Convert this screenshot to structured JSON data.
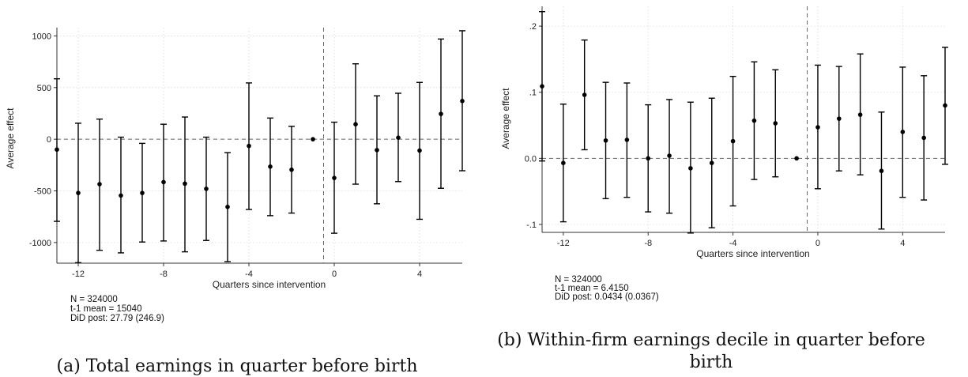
{
  "chart_data": [
    {
      "type": "scatter",
      "subtype": "event-study point estimates with 95% confidence intervals",
      "caption": "(a) Total earnings in quarter before birth",
      "xlabel": "Quarters since intervention",
      "ylabel": "Average effect",
      "xlim": [
        -13,
        6
      ],
      "ylim": [
        -1200,
        1080
      ],
      "xticks": [
        -12,
        -8,
        -4,
        0,
        4
      ],
      "yticks": [
        -1000,
        -500,
        0,
        500,
        1000
      ],
      "ytick_labels": [
        "-1000",
        "-500",
        "0",
        "500",
        "1000"
      ],
      "intervention_line_x": -0.5,
      "reference_line_y": 0,
      "grid": true,
      "x": [
        -13,
        -12,
        -11,
        -10,
        -9,
        -8,
        -7,
        -6,
        -5,
        -4,
        -3,
        -2,
        -1,
        0,
        1,
        2,
        3,
        4,
        5,
        6
      ],
      "estimate": [
        -100,
        -520,
        -435,
        -545,
        -520,
        -415,
        -430,
        -480,
        -655,
        -65,
        -265,
        -295,
        0,
        -375,
        145,
        -105,
        15,
        -110,
        245,
        370
      ],
      "ci_low": [
        -795,
        -1195,
        -1075,
        -1100,
        -995,
        -985,
        -1090,
        -980,
        -1185,
        -680,
        -740,
        -715,
        null,
        -910,
        -435,
        -625,
        -410,
        -775,
        -475,
        -305
      ],
      "ci_high": [
        585,
        155,
        195,
        20,
        -40,
        145,
        215,
        20,
        -130,
        545,
        205,
        125,
        null,
        165,
        730,
        420,
        445,
        550,
        970,
        1050
      ],
      "notes": [
        "N = 324000",
        "t-1 mean = 15040",
        "DiD post: 27.79 (246.9)"
      ]
    },
    {
      "type": "scatter",
      "subtype": "event-study point estimates with 95% confidence intervals",
      "caption_lines": [
        "(b) Within-firm earnings decile in quarter before",
        "birth"
      ],
      "xlabel": "Quarters since intervention",
      "ylabel": "Average effect",
      "xlim": [
        -13,
        6
      ],
      "ylim": [
        -0.112,
        0.23
      ],
      "xticks": [
        -12,
        -8,
        -4,
        0,
        4
      ],
      "yticks": [
        -0.1,
        0,
        0.1,
        0.2
      ],
      "ytick_labels": [
        "-.1",
        "0.0",
        ".1",
        ".2"
      ],
      "intervention_line_x": -0.5,
      "reference_line_y": 0,
      "grid": true,
      "x": [
        -13,
        -12,
        -11,
        -10,
        -9,
        -8,
        -7,
        -6,
        -5,
        -4,
        -3,
        -2,
        -1,
        0,
        1,
        2,
        3,
        4,
        5,
        6
      ],
      "estimate": [
        0.109,
        -0.007,
        0.096,
        0.027,
        0.028,
        0.0,
        0.004,
        -0.015,
        -0.007,
        0.026,
        0.057,
        0.053,
        0.0,
        0.047,
        0.06,
        0.066,
        -0.019,
        0.04,
        0.031,
        0.08
      ],
      "ci_low": [
        -0.004,
        -0.096,
        0.013,
        -0.061,
        -0.059,
        -0.081,
        -0.083,
        -0.113,
        -0.105,
        -0.072,
        -0.032,
        -0.028,
        null,
        -0.046,
        -0.019,
        -0.025,
        -0.107,
        -0.059,
        -0.063,
        -0.009
      ],
      "ci_high": [
        0.222,
        0.082,
        0.179,
        0.115,
        0.114,
        0.081,
        0.089,
        0.085,
        0.091,
        0.124,
        0.146,
        0.134,
        null,
        0.141,
        0.139,
        0.158,
        0.07,
        0.138,
        0.125,
        0.168
      ],
      "notes": [
        "N = 324000",
        "t-1 mean =  6.4150",
        "DiD post:  0.0434 (0.0367)"
      ]
    }
  ]
}
